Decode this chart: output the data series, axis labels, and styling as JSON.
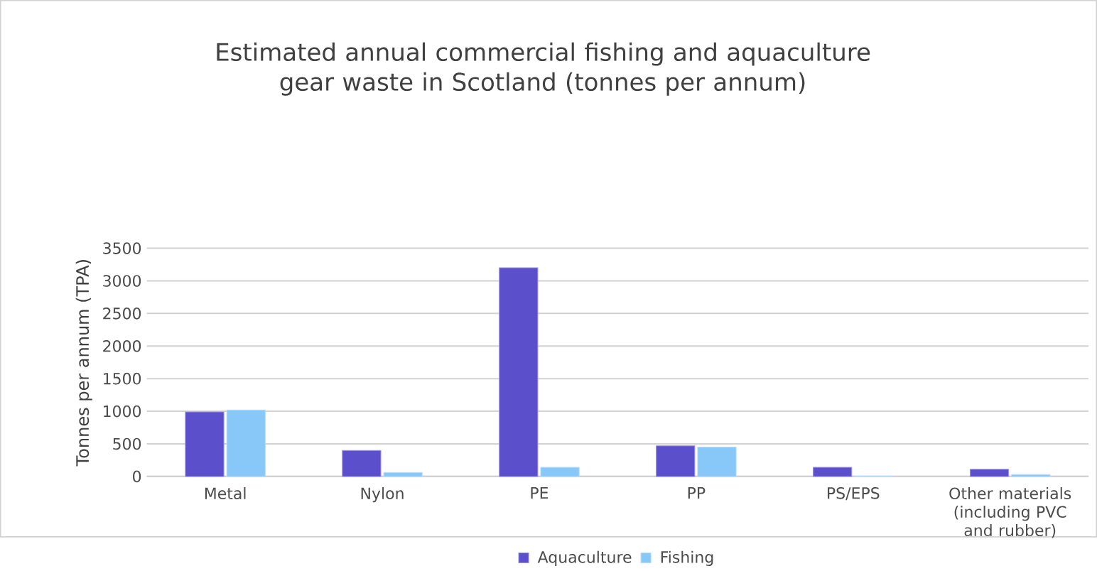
{
  "chart_data": {
    "type": "bar",
    "title": "Estimated annual commercial fishing and aquaculture gear waste in Scotland (tonnes per annum)",
    "ylabel": "Tonnes per annum (TPA)",
    "categories": [
      "Metal",
      "Nylon",
      "PE",
      "PP",
      "PS/EPS",
      "Other materials (including PVC and rubber)"
    ],
    "series": [
      {
        "name": "Aquaculture",
        "color": "#5b4fcc",
        "values": [
          990,
          400,
          3200,
          470,
          140,
          110
        ]
      },
      {
        "name": "Fishing",
        "color": "#87c8f8",
        "values": [
          1020,
          60,
          140,
          450,
          5,
          30
        ]
      }
    ],
    "ylim": [
      0,
      3500
    ],
    "yticks": [
      0,
      500,
      1000,
      1500,
      2000,
      2500,
      3000,
      3500
    ],
    "grid": "y",
    "legend": "bottom"
  }
}
